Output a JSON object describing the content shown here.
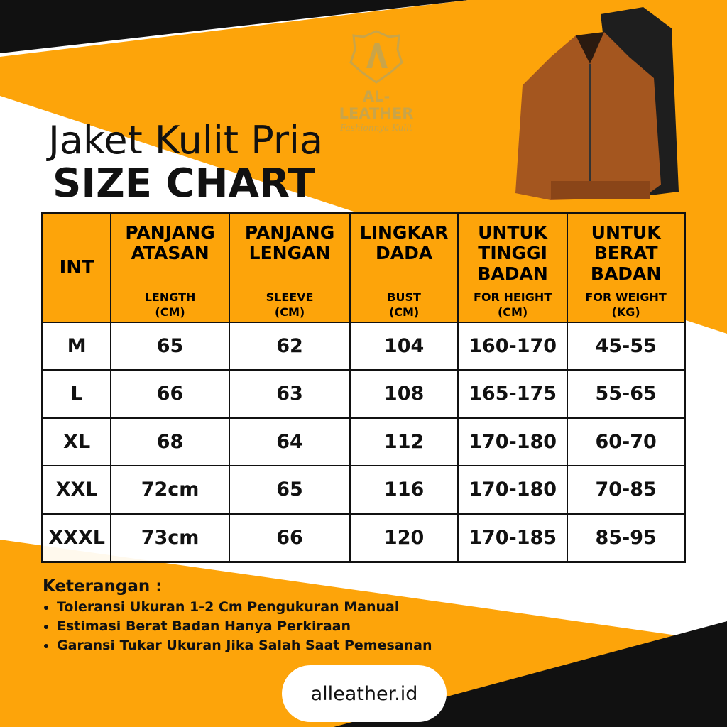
{
  "colors": {
    "accent": "#fda40a",
    "dark": "#111111",
    "gold": "#c9a449"
  },
  "logo": {
    "brand": "AL-LEATHER",
    "tagline": "Fashionnya Kulit"
  },
  "title": {
    "line1": "Jaket Kulit Pria",
    "line2": "SIZE CHART"
  },
  "table": {
    "headers": [
      {
        "main": "INT",
        "sub": "",
        "unit": ""
      },
      {
        "main": "PANJANG ATASAN",
        "sub": "LENGTH",
        "unit": "(CM)"
      },
      {
        "main": "PANJANG LENGAN",
        "sub": "SLEEVE",
        "unit": "(CM)"
      },
      {
        "main": "LINGKAR DADA",
        "sub": "BUST",
        "unit": "(CM)"
      },
      {
        "main": "UNTUK TINGGI BADAN",
        "sub": "FOR HEIGHT",
        "unit": "(CM)"
      },
      {
        "main": "UNTUK BERAT BADAN",
        "sub": "FOR WEIGHT",
        "unit": "(KG)"
      }
    ],
    "rows": [
      [
        "M",
        "65",
        "62",
        "104",
        "160-170",
        "45-55"
      ],
      [
        "L",
        "66",
        "63",
        "108",
        "165-175",
        "55-65"
      ],
      [
        "XL",
        "68",
        "64",
        "112",
        "170-180",
        "60-70"
      ],
      [
        "XXL",
        "72cm",
        "65",
        "116",
        "170-180",
        "70-85"
      ],
      [
        "XXXL",
        "73cm",
        "66",
        "120",
        "170-185",
        "85-95"
      ]
    ]
  },
  "notes": {
    "heading": "Keterangan :",
    "items": [
      "Toleransi Ukuran 1-2 Cm Pengukuran Manual",
      "Estimasi Berat Badan Hanya Perkiraan",
      "Garansi Tukar Ukuran Jika Salah Saat Pemesanan"
    ]
  },
  "website": "alleather.id"
}
